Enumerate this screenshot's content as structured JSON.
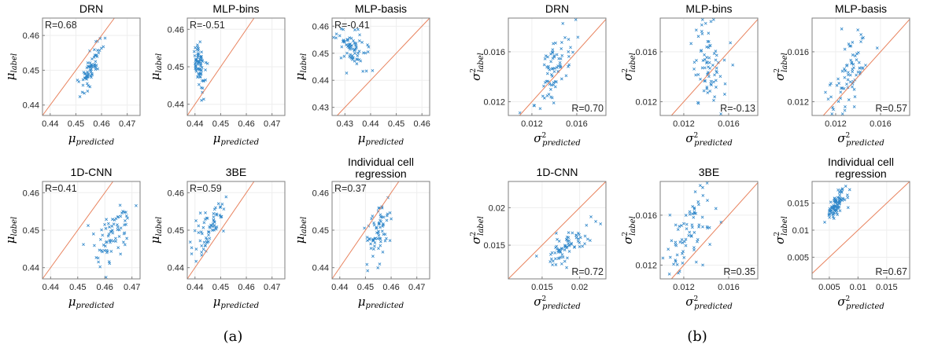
{
  "chart_data": [
    {
      "type": "scatter",
      "group": "a",
      "title": "DRN",
      "title2": "",
      "r_label": "R=0.68",
      "r_pos": "top-left",
      "xlabel": "μ",
      "xlabel_sub": "predicted",
      "ylabel": "μ",
      "ylabel_sub": "label",
      "squared": false,
      "xlim": [
        0.437,
        0.475
      ],
      "ylim": [
        0.437,
        0.465
      ],
      "xticks": [
        0.44,
        0.45,
        0.46,
        0.47
      ],
      "xtick_labels": [
        "0.44",
        "0.45",
        "0.46",
        "0.47"
      ],
      "yticks": [
        0.44,
        0.45,
        0.46
      ],
      "ytick_labels": [
        "0.44",
        "0.45",
        "0.46"
      ],
      "points": {
        "seed": 11,
        "n": 70,
        "cx": 0.4555,
        "cy": 0.4505,
        "sx": 0.0022,
        "sy": 0.0038,
        "corr": 0.68
      }
    },
    {
      "type": "scatter",
      "group": "a",
      "title": "MLP-bins",
      "title2": "",
      "r_label": "R=-0.51",
      "r_pos": "top-left",
      "xlabel": "μ",
      "xlabel_sub": "predicted",
      "ylabel": "μ",
      "ylabel_sub": "label",
      "squared": false,
      "xlim": [
        0.437,
        0.475
      ],
      "ylim": [
        0.437,
        0.463
      ],
      "xticks": [
        0.44,
        0.45,
        0.46,
        0.47
      ],
      "xtick_labels": [
        "0.44",
        "0.45",
        "0.46",
        "0.47"
      ],
      "yticks": [
        0.44,
        0.45,
        0.46
      ],
      "ytick_labels": [
        "0.44",
        "0.45",
        "0.46"
      ],
      "points": {
        "seed": 23,
        "n": 75,
        "cx": 0.4415,
        "cy": 0.4505,
        "sx": 0.0014,
        "sy": 0.0035,
        "corr": -0.51
      }
    },
    {
      "type": "scatter",
      "group": "a",
      "title": "MLP-basis",
      "title2": "",
      "r_label": "R=-0.41",
      "r_pos": "top-left",
      "xlabel": "μ",
      "xlabel_sub": "predicted",
      "ylabel": "μ",
      "ylabel_sub": "label",
      "squared": false,
      "xlim": [
        0.425,
        0.463
      ],
      "ylim": [
        0.427,
        0.463
      ],
      "xticks": [
        0.43,
        0.44,
        0.45,
        0.46
      ],
      "xtick_labels": [
        "0.43",
        "0.44",
        "0.45",
        "0.46"
      ],
      "yticks": [
        0.43,
        0.44,
        0.45,
        0.46
      ],
      "ytick_labels": [
        "0.43",
        "0.44",
        "0.45",
        "0.46"
      ],
      "points": {
        "seed": 37,
        "n": 75,
        "cx": 0.4335,
        "cy": 0.4515,
        "sx": 0.0035,
        "sy": 0.0035,
        "corr": -0.41
      }
    },
    {
      "type": "scatter",
      "group": "a",
      "title": "1D-CNN",
      "title2": "",
      "r_label": "R=0.41",
      "r_pos": "top-left",
      "xlabel": "μ",
      "xlabel_sub": "predicted",
      "ylabel": "μ",
      "ylabel_sub": "label",
      "squared": false,
      "xlim": [
        0.437,
        0.473
      ],
      "ylim": [
        0.437,
        0.463
      ],
      "xticks": [
        0.44,
        0.45,
        0.46,
        0.47
      ],
      "xtick_labels": [
        "0.44",
        "0.45",
        "0.46",
        "0.47"
      ],
      "yticks": [
        0.44,
        0.45,
        0.46
      ],
      "ytick_labels": [
        "0.44",
        "0.45",
        "0.46"
      ],
      "points": {
        "seed": 41,
        "n": 75,
        "cx": 0.4635,
        "cy": 0.4495,
        "sx": 0.004,
        "sy": 0.0042,
        "corr": 0.41
      }
    },
    {
      "type": "scatter",
      "group": "a",
      "title": "3BE",
      "title2": "",
      "r_label": "R=0.59",
      "r_pos": "top-left",
      "xlabel": "μ",
      "xlabel_sub": "predicted",
      "ylabel": "μ",
      "ylabel_sub": "label",
      "squared": false,
      "xlim": [
        0.437,
        0.475
      ],
      "ylim": [
        0.437,
        0.463
      ],
      "xticks": [
        0.44,
        0.45,
        0.46,
        0.47
      ],
      "xtick_labels": [
        "0.44",
        "0.45",
        "0.46",
        "0.47"
      ],
      "yticks": [
        0.44,
        0.45,
        0.46
      ],
      "ytick_labels": [
        "0.44",
        "0.45",
        "0.46"
      ],
      "points": {
        "seed": 53,
        "n": 70,
        "cx": 0.446,
        "cy": 0.451,
        "sx": 0.0035,
        "sy": 0.0035,
        "corr": 0.59
      }
    },
    {
      "type": "scatter",
      "group": "a",
      "title": "Individual cell",
      "title2": "regression",
      "r_label": "R=0.37",
      "r_pos": "top-left",
      "xlabel": "μ",
      "xlabel_sub": "predicted",
      "ylabel": "μ",
      "ylabel_sub": "label",
      "squared": false,
      "xlim": [
        0.437,
        0.475
      ],
      "ylim": [
        0.437,
        0.463
      ],
      "xticks": [
        0.44,
        0.45,
        0.46,
        0.47
      ],
      "xtick_labels": [
        "0.44",
        "0.45",
        "0.46",
        "0.47"
      ],
      "yticks": [
        0.44,
        0.45,
        0.46
      ],
      "ytick_labels": [
        "0.44",
        "0.45",
        "0.46"
      ],
      "points": {
        "seed": 67,
        "n": 70,
        "cx": 0.4545,
        "cy": 0.4495,
        "sx": 0.0025,
        "sy": 0.0035,
        "corr": 0.37
      }
    },
    {
      "type": "scatter",
      "group": "b",
      "title": "DRN",
      "title2": "",
      "r_label": "R=0.70",
      "r_pos": "bottom-right",
      "xlabel": "σ",
      "xlabel_sub": "predicted",
      "ylabel": "σ",
      "ylabel_sub": "label",
      "squared": true,
      "xlim": [
        0.0099,
        0.0186
      ],
      "ylim": [
        0.0109,
        0.0187
      ],
      "xticks": [
        0.012,
        0.016
      ],
      "xtick_labels": [
        "0.012",
        "0.016"
      ],
      "yticks": [
        0.012,
        0.016
      ],
      "ytick_labels": [
        "0.012",
        "0.016"
      ],
      "points": {
        "seed": 71,
        "n": 75,
        "cx": 0.0138,
        "cy": 0.0145,
        "sx": 0.0009,
        "sy": 0.0017,
        "corr": 0.7
      }
    },
    {
      "type": "scatter",
      "group": "b",
      "title": "MLP-bins",
      "title2": "",
      "r_label": "R=-0.13",
      "r_pos": "bottom-right",
      "xlabel": "σ",
      "xlabel_sub": "predicted",
      "ylabel": "σ",
      "ylabel_sub": "label",
      "squared": true,
      "xlim": [
        0.0099,
        0.0186
      ],
      "ylim": [
        0.0109,
        0.0187
      ],
      "xticks": [
        0.012,
        0.016
      ],
      "xtick_labels": [
        "0.012",
        "0.016"
      ],
      "yticks": [
        0.012,
        0.016
      ],
      "ytick_labels": [
        "0.012",
        "0.016"
      ],
      "points": {
        "seed": 83,
        "n": 75,
        "cx": 0.0142,
        "cy": 0.0148,
        "sx": 0.0007,
        "sy": 0.0016,
        "corr": -0.13
      }
    },
    {
      "type": "scatter",
      "group": "b",
      "title": "MLP-basis",
      "title2": "",
      "r_label": "R=0.57",
      "r_pos": "bottom-right",
      "xlabel": "σ",
      "xlabel_sub": "predicted",
      "ylabel": "σ",
      "ylabel_sub": "label",
      "squared": true,
      "xlim": [
        0.0099,
        0.0186
      ],
      "ylim": [
        0.0109,
        0.0187
      ],
      "xticks": [
        0.012,
        0.016
      ],
      "xtick_labels": [
        "0.012",
        "0.016"
      ],
      "yticks": [
        0.012,
        0.016
      ],
      "ytick_labels": [
        "0.012",
        "0.016"
      ],
      "points": {
        "seed": 97,
        "n": 75,
        "cx": 0.0133,
        "cy": 0.0145,
        "sx": 0.0009,
        "sy": 0.0017,
        "corr": 0.57
      }
    },
    {
      "type": "scatter",
      "group": "b",
      "title": "1D-CNN",
      "title2": "",
      "r_label": "R=0.72",
      "r_pos": "bottom-right",
      "xlabel": "σ",
      "xlabel_sub": "predicted",
      "ylabel": "σ",
      "ylabel_sub": "label",
      "squared": true,
      "xlim": [
        0.0105,
        0.0235
      ],
      "ylim": [
        0.0105,
        0.0235
      ],
      "xticks": [
        0.015,
        0.02
      ],
      "xtick_labels": [
        "0.015",
        "0.02"
      ],
      "yticks": [
        0.015,
        0.02
      ],
      "ytick_labels": [
        "0.015",
        "0.02"
      ],
      "points": {
        "seed": 101,
        "n": 75,
        "cx": 0.0183,
        "cy": 0.0147,
        "sx": 0.0015,
        "sy": 0.0013,
        "corr": 0.72
      }
    },
    {
      "type": "scatter",
      "group": "b",
      "title": "3BE",
      "title2": "",
      "r_label": "R=0.35",
      "r_pos": "bottom-right",
      "xlabel": "σ",
      "xlabel_sub": "predicted",
      "ylabel": "σ",
      "ylabel_sub": "label",
      "squared": true,
      "xlim": [
        0.0099,
        0.0186
      ],
      "ylim": [
        0.0109,
        0.0187
      ],
      "xticks": [
        0.012,
        0.016
      ],
      "xtick_labels": [
        "0.012",
        "0.016"
      ],
      "yticks": [
        0.012,
        0.016
      ],
      "ytick_labels": [
        "0.012",
        "0.016"
      ],
      "points": {
        "seed": 113,
        "n": 75,
        "cx": 0.0125,
        "cy": 0.0145,
        "sx": 0.0011,
        "sy": 0.0016,
        "corr": 0.35
      }
    },
    {
      "type": "scatter",
      "group": "b",
      "title": "Individual cell",
      "title2": "regression",
      "r_label": "R=0.67",
      "r_pos": "bottom-right",
      "xlabel": "σ",
      "xlabel_sub": "predicted",
      "ylabel": "σ",
      "ylabel_sub": "label",
      "squared": true,
      "xlim": [
        0.002,
        0.019
      ],
      "ylim": [
        0.001,
        0.019
      ],
      "xticks": [
        0.005,
        0.01,
        0.015
      ],
      "xtick_labels": [
        "0.005",
        "0.01",
        "0.015"
      ],
      "yticks": [
        0.005,
        0.01,
        0.015
      ],
      "ytick_labels": [
        "0.005",
        "0.01",
        "0.015"
      ],
      "points": {
        "seed": 127,
        "n": 90,
        "cx": 0.0063,
        "cy": 0.0148,
        "sx": 0.0008,
        "sy": 0.0015,
        "corr": 0.67
      }
    }
  ],
  "captions": {
    "a": "(a)",
    "b": "(b)"
  },
  "colors": {
    "points": "#2e86c9",
    "diagonal": "#e8825d",
    "axis": "#7f7f7f",
    "grid": "#eeeeee"
  }
}
